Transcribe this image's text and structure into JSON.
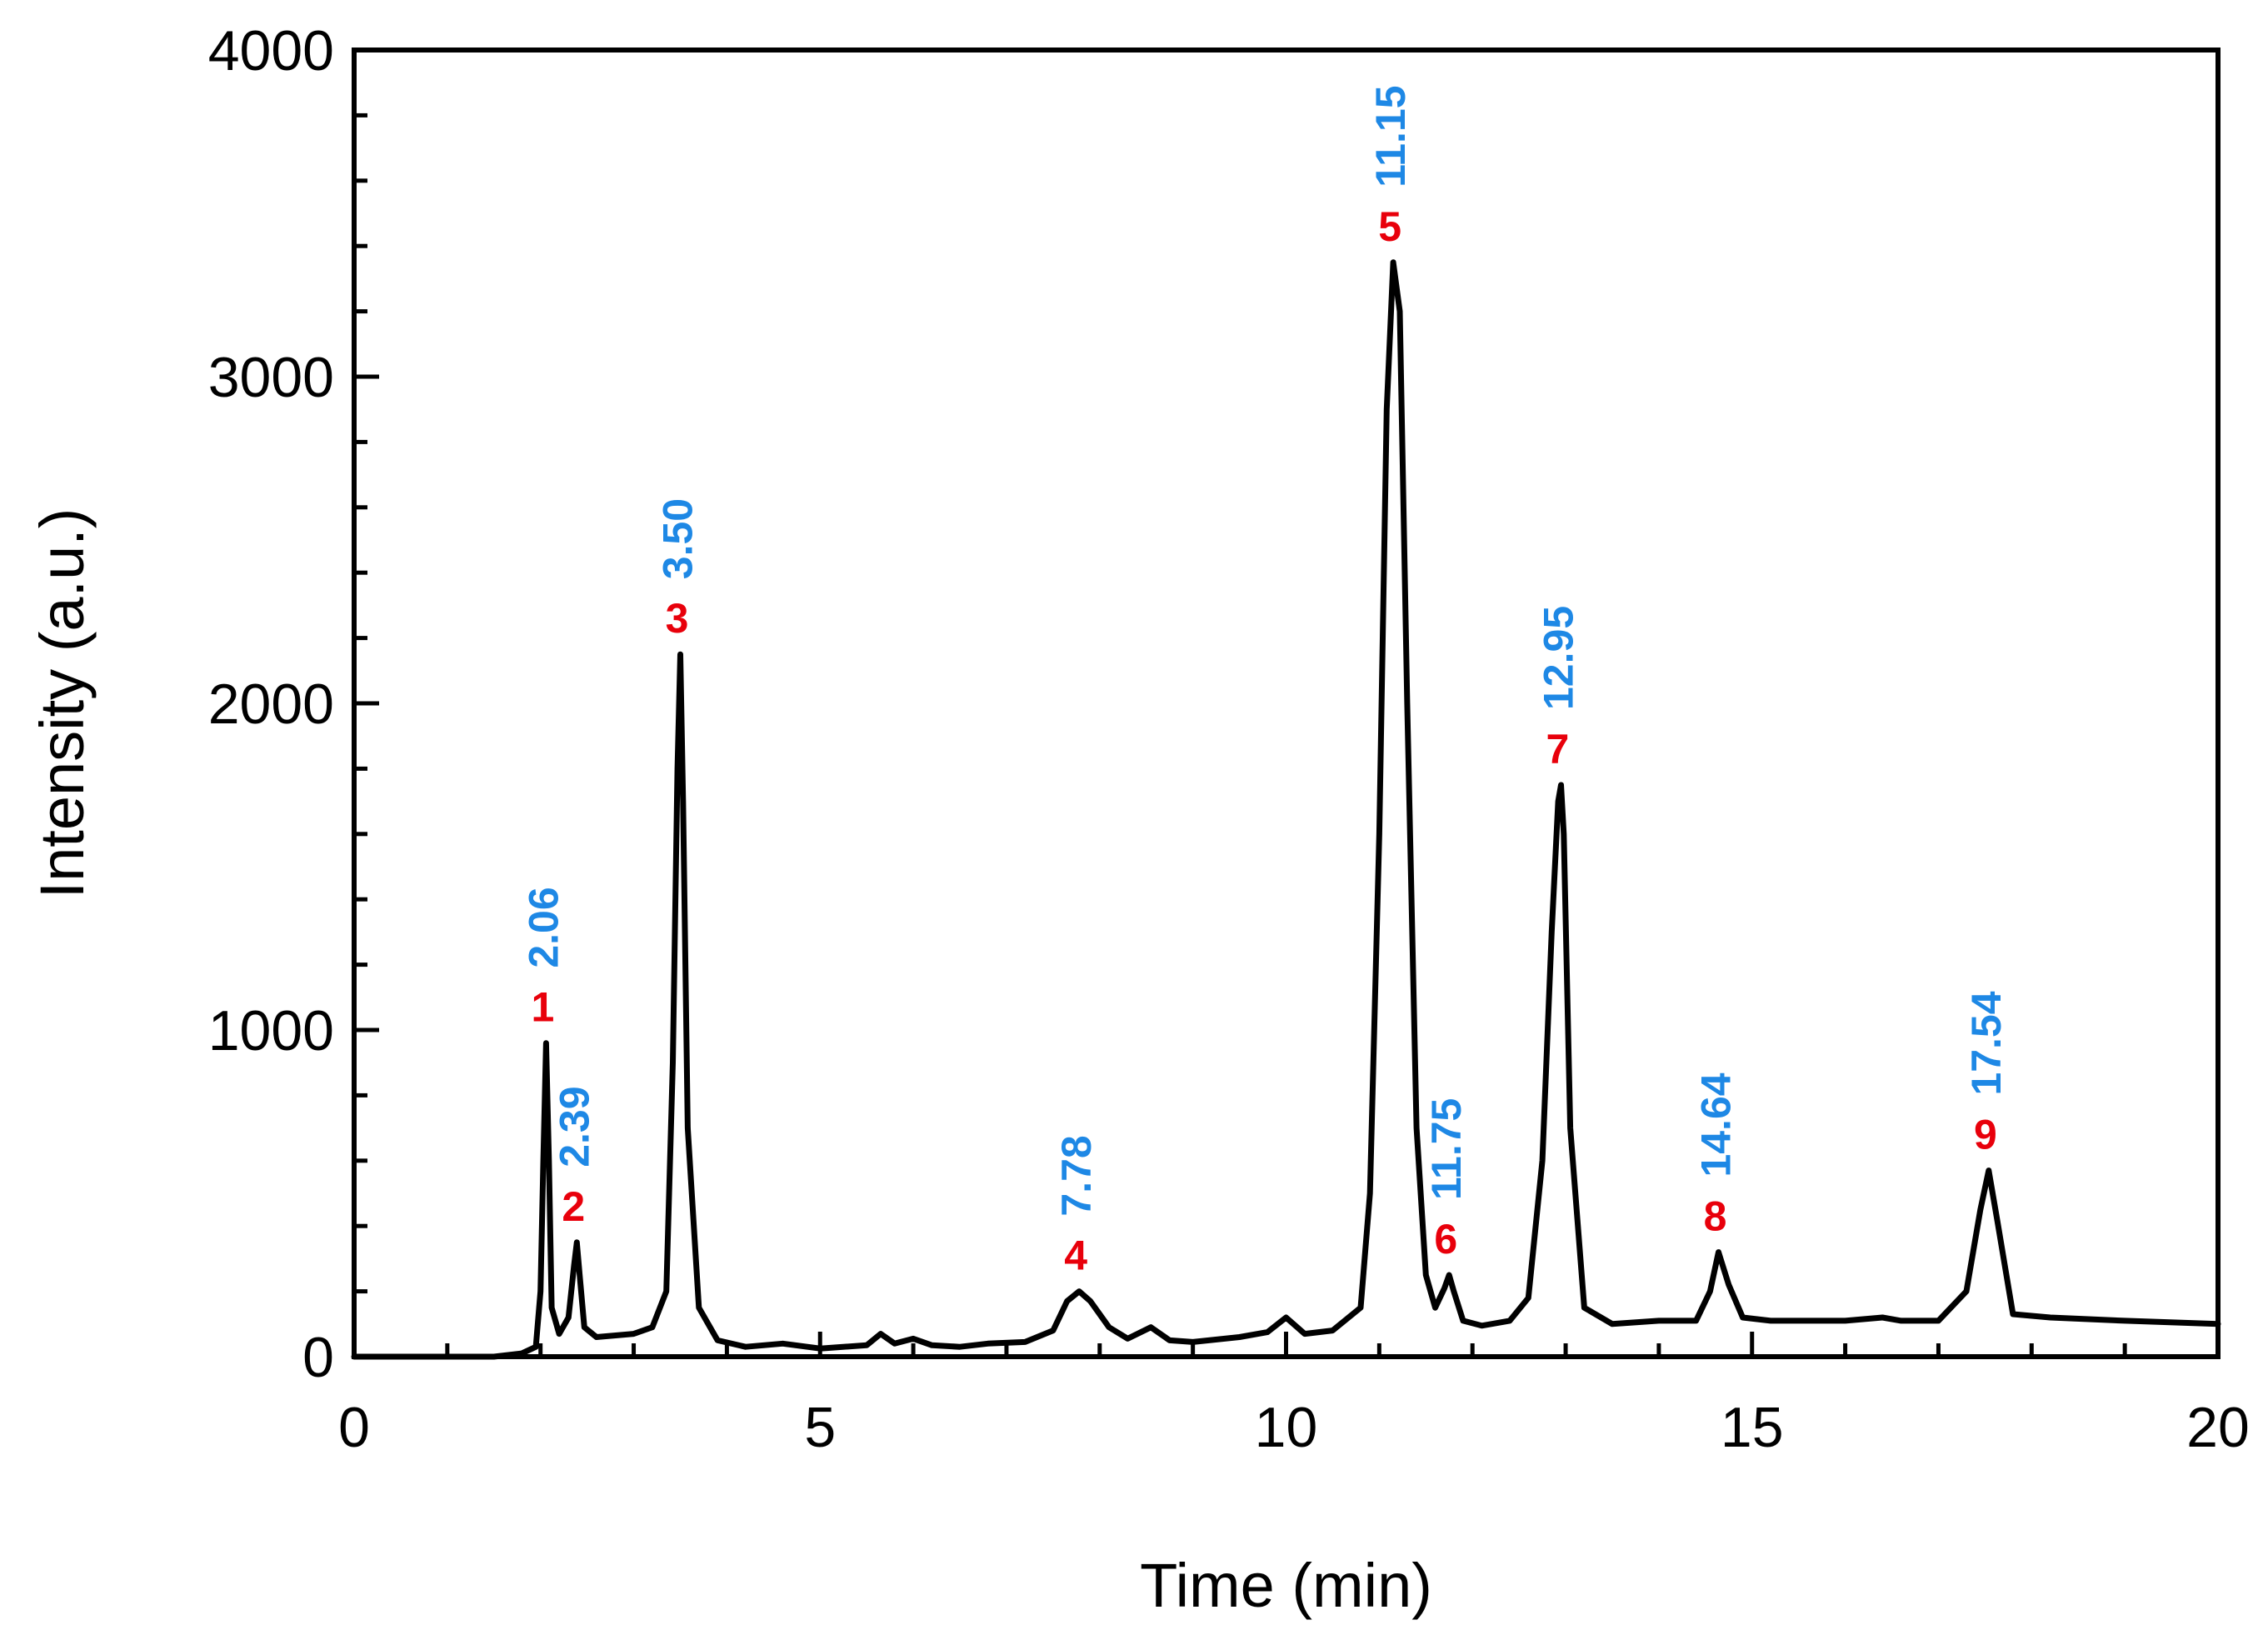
{
  "chart_data": {
    "type": "line",
    "title": "",
    "xlabel": "Time (min)",
    "ylabel": "Intensity (a.u.)",
    "xlim": [
      0,
      20
    ],
    "ylim": [
      0,
      4000
    ],
    "x_ticks": [
      0,
      5,
      10,
      15,
      20
    ],
    "x_tick_labels": [
      "0",
      "5",
      "10",
      "15",
      "20"
    ],
    "y_ticks": [
      0,
      1000,
      2000,
      3000,
      4000
    ],
    "y_tick_labels": [
      "0",
      "1000",
      "2000",
      "3000",
      "4000"
    ],
    "grid": false,
    "colors": {
      "line": "#000000",
      "peak_number": "#e8000b",
      "retention_time": "#1e88e5"
    },
    "series": [
      {
        "name": "chromatogram",
        "x": [
          0,
          1.5,
          1.8,
          1.95,
          2.0,
          2.03,
          2.06,
          2.09,
          2.12,
          2.2,
          2.3,
          2.36,
          2.39,
          2.42,
          2.47,
          2.6,
          3.0,
          3.2,
          3.35,
          3.42,
          3.47,
          3.5,
          3.53,
          3.58,
          3.7,
          3.9,
          4.2,
          4.6,
          5.0,
          5.5,
          5.65,
          5.8,
          6.0,
          6.2,
          6.5,
          6.8,
          7.2,
          7.5,
          7.65,
          7.78,
          7.9,
          8.1,
          8.3,
          8.55,
          8.75,
          9.0,
          9.5,
          9.8,
          10.0,
          10.2,
          10.5,
          10.8,
          10.9,
          11.0,
          11.08,
          11.15,
          11.22,
          11.3,
          11.4,
          11.5,
          11.6,
          11.7,
          11.75,
          11.8,
          11.9,
          12.1,
          12.4,
          12.6,
          12.75,
          12.85,
          12.92,
          12.95,
          12.98,
          13.05,
          13.2,
          13.5,
          14.0,
          14.4,
          14.55,
          14.64,
          14.75,
          14.9,
          15.2,
          15.5,
          16.0,
          16.4,
          16.6,
          17.0,
          17.3,
          17.45,
          17.54,
          17.63,
          17.8,
          18.2,
          19.0,
          20.0
        ],
        "y": [
          0,
          0,
          10,
          30,
          200,
          600,
          960,
          600,
          150,
          70,
          120,
          280,
          350,
          250,
          90,
          60,
          70,
          90,
          200,
          900,
          1800,
          2150,
          1700,
          700,
          150,
          50,
          30,
          40,
          25,
          35,
          70,
          40,
          55,
          35,
          30,
          40,
          45,
          80,
          170,
          200,
          170,
          90,
          55,
          90,
          50,
          45,
          60,
          75,
          120,
          70,
          80,
          150,
          500,
          1600,
          2900,
          3350,
          3200,
          2000,
          700,
          250,
          150,
          210,
          250,
          200,
          110,
          95,
          110,
          180,
          600,
          1300,
          1700,
          1750,
          1600,
          700,
          150,
          100,
          110,
          110,
          200,
          320,
          220,
          120,
          110,
          110,
          110,
          120,
          110,
          110,
          200,
          450,
          570,
          420,
          130,
          120,
          110,
          100
        ]
      }
    ],
    "peaks": [
      {
        "number": "1",
        "retention_time": "2.06",
        "x": 2.06,
        "y": 960
      },
      {
        "number": "2",
        "retention_time": "2.39",
        "x": 2.39,
        "y": 350
      },
      {
        "number": "3",
        "retention_time": "3.50",
        "x": 3.5,
        "y": 2150
      },
      {
        "number": "4",
        "retention_time": "7.78",
        "x": 7.78,
        "y": 200
      },
      {
        "number": "5",
        "retention_time": "11.15",
        "x": 11.15,
        "y": 3350
      },
      {
        "number": "6",
        "retention_time": "11.75",
        "x": 11.75,
        "y": 250
      },
      {
        "number": "7",
        "retention_time": "12.95",
        "x": 12.95,
        "y": 1750
      },
      {
        "number": "8",
        "retention_time": "14.64",
        "x": 14.64,
        "y": 320
      },
      {
        "number": "9",
        "retention_time": "17.54",
        "x": 17.54,
        "y": 570
      }
    ]
  }
}
